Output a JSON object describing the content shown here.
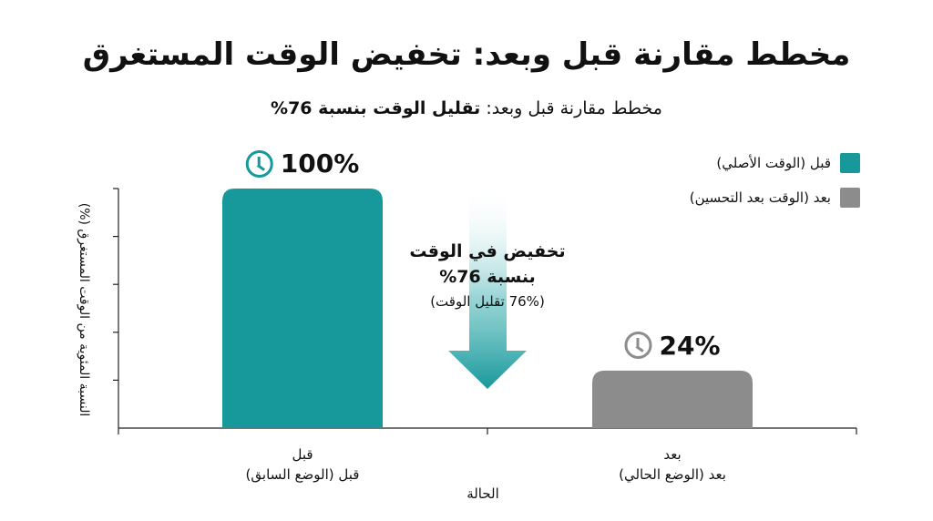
{
  "colors": {
    "before": "#17989a",
    "after": "#8c8c8c",
    "axis": "#222222"
  },
  "title": "مخطط مقارنة قبل وبعد: تخفيض الوقت المستغرق",
  "subtitle": {
    "prefix": "مخطط مقارنة قبل وبعد: ",
    "emphasis": "تقليل الوقت بنسبة 76%"
  },
  "annotation": {
    "line1": "تخفيض في الوقت",
    "line2": "بنسبة 76%",
    "line3": "(76% تقليل الوقت)"
  },
  "chart_data": {
    "type": "bar",
    "categories": [
      "قبل",
      "بعد"
    ],
    "category_sublabels": [
      "قبل (الوضع السابق)",
      "بعد (الوضع الحالي)"
    ],
    "values": [
      100,
      24
    ],
    "data_labels": [
      "100%",
      "24%"
    ],
    "ylim": [
      0,
      100
    ],
    "yticks": [
      20,
      40,
      60,
      80,
      100
    ],
    "xlabel": "الحالة",
    "ylabel": "النسبة المئوية من الوقت المستغرق (%)",
    "legend": [
      {
        "label": "قبل (الوقت الأصلي)",
        "color": "#17989a"
      },
      {
        "label": "بعد (الوقت بعد التحسين)",
        "color": "#8c8c8c"
      }
    ],
    "legend_position": "top-right",
    "grid": false
  }
}
